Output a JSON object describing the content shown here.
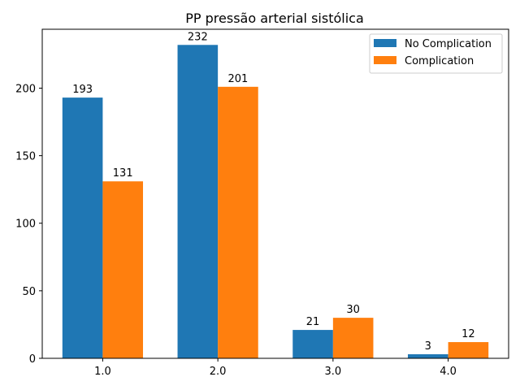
{
  "chart_data": {
    "type": "bar",
    "title": "PP pressão arterial sistólica",
    "xlabel": "",
    "ylabel": "",
    "categories": [
      "1.0",
      "2.0",
      "3.0",
      "4.0"
    ],
    "series": [
      {
        "name": "No Complication",
        "values": [
          193,
          232,
          21,
          3
        ],
        "color": "#1f77b4"
      },
      {
        "name": "Complication",
        "values": [
          131,
          201,
          30,
          12
        ],
        "color": "#ff7f0e"
      }
    ],
    "ylim": [
      0,
      243.6
    ],
    "yticks": [
      0,
      50,
      100,
      150,
      200
    ],
    "grid": false,
    "legend_position": "top-right",
    "data_labels": true
  }
}
